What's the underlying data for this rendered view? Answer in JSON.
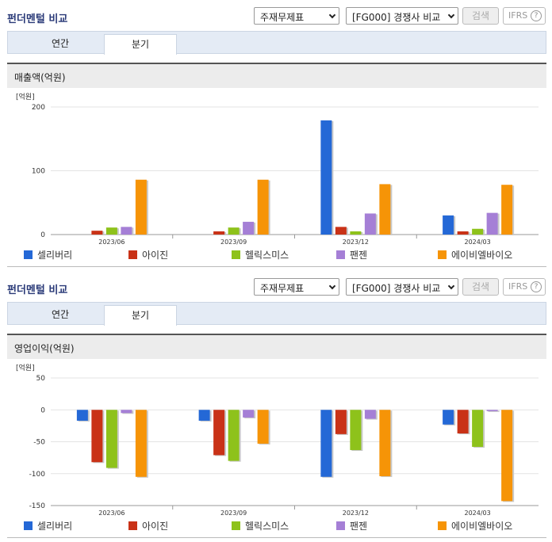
{
  "colors": {
    "s0": "#2468d6",
    "s1": "#c93217",
    "s2": "#8ec21b",
    "s3": "#a57fd6",
    "s4": "#f69407"
  },
  "panels": [
    {
      "title": "펀더멘털 비교",
      "statement_select": "주재무제표",
      "peer_select": "[FG000] 경쟁사 비교",
      "search_button": "검색",
      "ifrs_button": "IFRS",
      "help": "?",
      "tabs": [
        "연간",
        "분기"
      ],
      "section_title": "매출액(억원)",
      "chart_data": {
        "type": "bar",
        "unit_label": "[억원]",
        "categories": [
          "2023/06",
          "2023/09",
          "2023/12",
          "2024/03"
        ],
        "ylim": [
          0,
          200
        ],
        "yticks": [
          0,
          100,
          200
        ],
        "grid": true,
        "legend_position": "bottom",
        "series": [
          {
            "name": "셀리버리",
            "values": [
              0,
              0,
              179,
              30
            ]
          },
          {
            "name": "아이진",
            "values": [
              6,
              5,
              12,
              5
            ]
          },
          {
            "name": "헬릭스미스",
            "values": [
              11,
              11,
              5,
              9
            ]
          },
          {
            "name": "팬젠",
            "values": [
              12,
              20,
              33,
              34
            ]
          },
          {
            "name": "에이비엘바이오",
            "values": [
              86,
              86,
              79,
              78
            ]
          }
        ]
      }
    },
    {
      "title": "펀더멘털 비교",
      "statement_select": "주재무제표",
      "peer_select": "[FG000] 경쟁사 비교",
      "search_button": "검색",
      "ifrs_button": "IFRS",
      "help": "?",
      "tabs": [
        "연간",
        "분기"
      ],
      "section_title": "영업이익(억원)",
      "chart_data": {
        "type": "bar",
        "unit_label": "[억원]",
        "categories": [
          "2023/06",
          "2023/09",
          "2023/12",
          "2024/03"
        ],
        "ylim": [
          -150,
          50
        ],
        "yticks": [
          50,
          0,
          -50,
          -100,
          -150
        ],
        "grid": true,
        "legend_position": "bottom",
        "series": [
          {
            "name": "셀리버리",
            "values": [
              -17,
              -17,
              -105,
              -23
            ]
          },
          {
            "name": "아이진",
            "values": [
              -82,
              -71,
              -38,
              -37
            ]
          },
          {
            "name": "헬릭스미스",
            "values": [
              -91,
              -80,
              -63,
              -58
            ]
          },
          {
            "name": "팬젠",
            "values": [
              -5,
              -12,
              -14,
              -2
            ]
          },
          {
            "name": "에이비엘바이오",
            "values": [
              -105,
              -53,
              -104,
              -143
            ]
          }
        ]
      }
    }
  ]
}
